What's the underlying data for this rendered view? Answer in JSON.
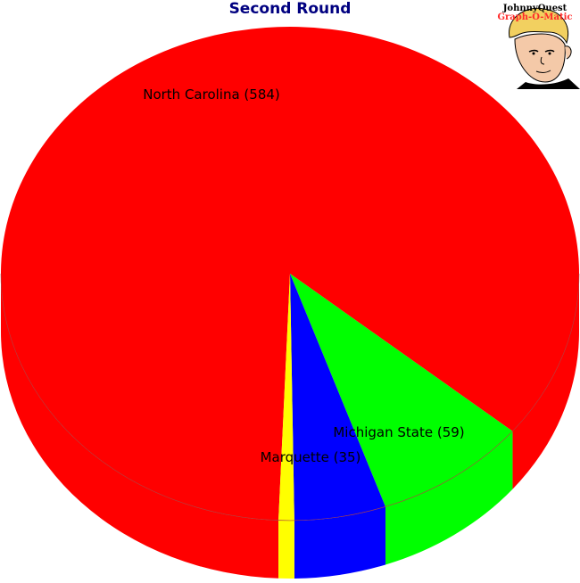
{
  "chart_data": {
    "type": "pie",
    "title": "Second Round",
    "slices": [
      {
        "label": "North Carolina (584)",
        "name": "North Carolina",
        "value": 584,
        "color": "#ff0000"
      },
      {
        "label": "Michigan State (59)",
        "name": "Michigan State",
        "value": 59,
        "color": "#00ff00"
      },
      {
        "label": "Marquette (35)",
        "name": "Marquette",
        "value": 35,
        "color": "#0000ff"
      },
      {
        "label": "",
        "name": "",
        "value": 6,
        "color": "#ffff00"
      }
    ],
    "style": "3d-tilted"
  },
  "logo": {
    "line1": "JohnnyQuest",
    "line2": "Graph-O-Matic"
  }
}
